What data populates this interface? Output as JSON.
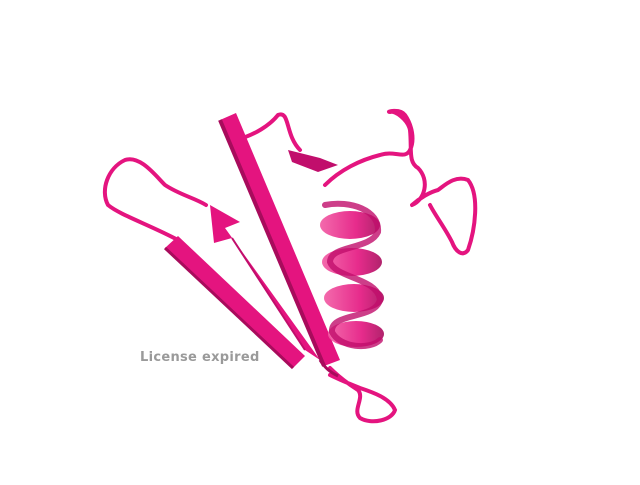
{
  "watermark": {
    "text": "License expired"
  },
  "colors": {
    "background": "#ffffff",
    "ribbon": "#e4147f",
    "ribbon_dark": "#a80b5c",
    "ribbon_light": "#f25aa3",
    "watermark": "#9a9a9a"
  },
  "structure": {
    "representation": "cartoon",
    "elements": [
      "beta-strand",
      "beta-strand",
      "beta-strand",
      "alpha-helix",
      "loop",
      "loop",
      "loop"
    ]
  }
}
